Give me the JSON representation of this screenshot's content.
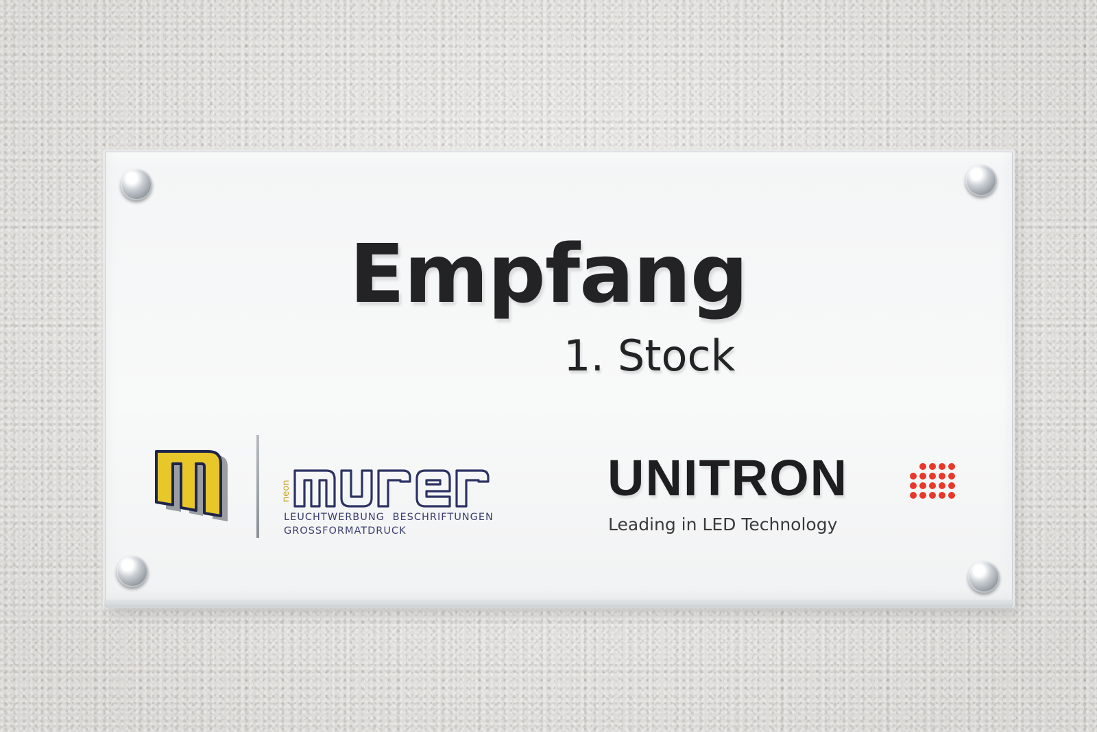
{
  "sign": {
    "title": "Empfang",
    "subtitle": "1. Stock"
  },
  "murer_logo": {
    "wordmark": "murer",
    "neon_tag": "neon",
    "line1": "LEUCHTWERBUNG BESCHRIFTUNGEN",
    "line2": "GROSSFORMATDRUCK",
    "colors": {
      "mark_yellow": "#e8c72a",
      "mark_outline": "#1f2548",
      "mark_shadow": "#9a9ea3",
      "wordmark_outline": "#2c3263"
    }
  },
  "unitron_logo": {
    "name": "UNITRON",
    "tagline": "Leading in LED Technology",
    "colors": {
      "text": "#1e1e20",
      "dots": "#e8382a"
    }
  },
  "icons": [
    "standoff-bolt-icon",
    "murer-m-logo-icon",
    "unitron-dot-grid-icon"
  ]
}
